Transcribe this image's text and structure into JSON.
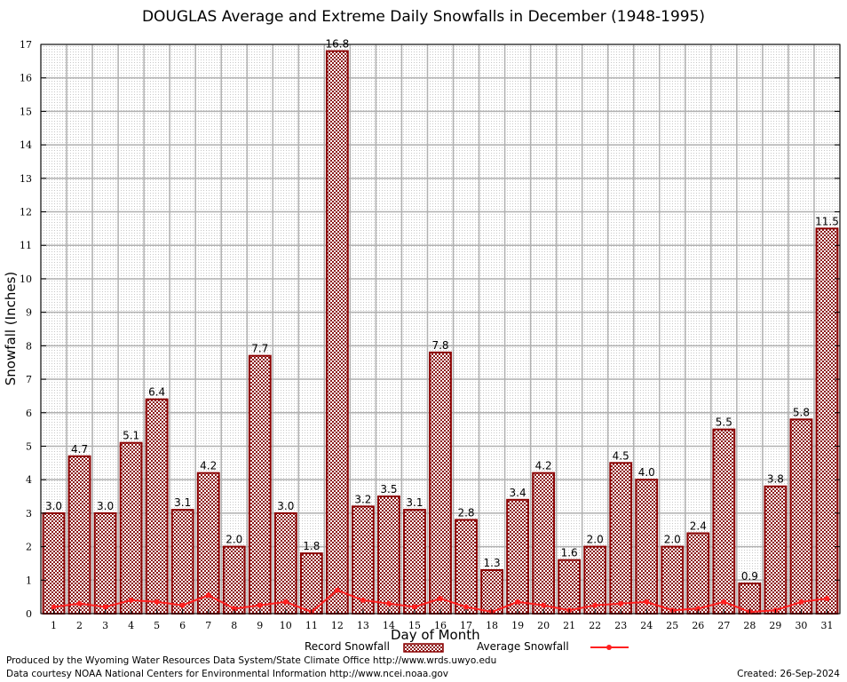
{
  "colors": {
    "bar_fill": "#8b1a1a",
    "bar_stroke": "#8b0000",
    "avg_line": "#ff2020",
    "grid": "#b0b0b0"
  },
  "legend": {
    "record_label": "Record Snowfall",
    "average_label": "Average Snowfall"
  },
  "footer": {
    "produced_by": "Produced by the Wyoming Water Resources Data System/State Climate Office http://www.wrds.uwyo.edu",
    "courtesy": "Data courtesy NOAA National Centers for Environmental Information http://www.ncei.noaa.gov",
    "created": "Created:  26-Sep-2024"
  },
  "chart_data": {
    "type": "bar",
    "title": "DOUGLAS Average and Extreme Daily Snowfalls in December (1948-1995)",
    "xlabel": "Day of Month",
    "ylabel": "Snowfall (Inches)",
    "ylim": [
      0,
      17
    ],
    "yticks": [
      0,
      1,
      2,
      3,
      4,
      5,
      6,
      7,
      8,
      9,
      10,
      11,
      12,
      13,
      14,
      15,
      16,
      17
    ],
    "grid": true,
    "categories": [
      "1",
      "2",
      "3",
      "4",
      "5",
      "6",
      "7",
      "8",
      "9",
      "10",
      "11",
      "12",
      "13",
      "14",
      "15",
      "16",
      "17",
      "18",
      "19",
      "20",
      "21",
      "22",
      "23",
      "24",
      "25",
      "26",
      "27",
      "28",
      "29",
      "30",
      "31"
    ],
    "series": [
      {
        "name": "Record Snowfall",
        "kind": "bar",
        "values": [
          3.0,
          4.7,
          3.0,
          5.1,
          6.4,
          3.1,
          4.2,
          2.0,
          7.7,
          3.0,
          1.8,
          16.8,
          3.2,
          3.5,
          3.1,
          7.8,
          2.8,
          1.3,
          3.4,
          4.2,
          1.6,
          2.0,
          4.5,
          4.0,
          2.0,
          2.4,
          5.5,
          0.9,
          3.8,
          5.8,
          11.5
        ],
        "labels": [
          "3.0",
          "4.7",
          "3.0",
          "5.1",
          "6.4",
          "3.1",
          "4.2",
          "2.0",
          "7.7",
          "3.0",
          "1.8",
          "16.8",
          "3.2",
          "3.5",
          "3.1",
          "7.8",
          "2.8",
          "1.3",
          "3.4",
          "4.2",
          "1.6",
          "2.0",
          "4.5",
          "4.0",
          "2.0",
          "2.4",
          "5.5",
          "0.9",
          "3.8",
          "5.8",
          "11.5"
        ]
      },
      {
        "name": "Average Snowfall",
        "kind": "line",
        "values": [
          0.2,
          0.3,
          0.2,
          0.4,
          0.35,
          0.25,
          0.55,
          0.15,
          0.25,
          0.35,
          0.05,
          0.7,
          0.4,
          0.3,
          0.2,
          0.45,
          0.2,
          0.05,
          0.35,
          0.25,
          0.1,
          0.25,
          0.3,
          0.35,
          0.1,
          0.15,
          0.35,
          0.05,
          0.1,
          0.35,
          0.45
        ]
      }
    ]
  }
}
